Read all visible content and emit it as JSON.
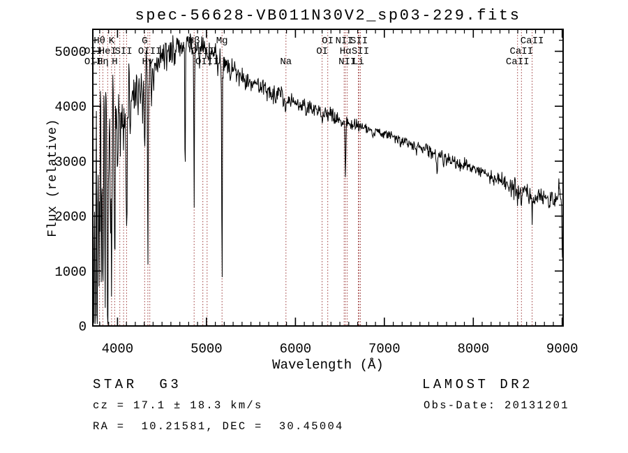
{
  "chart_data": {
    "type": "line",
    "title": "spec-56628-VB011N30V2_sp03-229.fits",
    "xlabel": "Wavelength (Å)",
    "ylabel": "Flux (relative)",
    "xlim": [
      3722,
      9010
    ],
    "ylim": [
      0,
      5400
    ],
    "xticks": [
      4000,
      5000,
      6000,
      7000,
      8000,
      9000
    ],
    "yticks": [
      0,
      1000,
      2000,
      3000,
      4000,
      5000
    ],
    "x_minor_step": 100,
    "y_minor_step": 200,
    "grid": false,
    "legend": null,
    "line_color": "#000000",
    "marker_line_color": "#993333",
    "spectral_lines": [
      {
        "wavelength": 3798,
        "label": "Hθ",
        "row": 1
      },
      {
        "wavelength": 3933,
        "label": "K",
        "row": 1
      },
      {
        "wavelength": 4305,
        "label": "G",
        "row": 1
      },
      {
        "wavelength": 4861,
        "label": "Hβ",
        "row": 1
      },
      {
        "wavelength": 5175,
        "label": "Mg",
        "row": 1
      },
      {
        "wavelength": 6364,
        "label": "OI",
        "row": 1
      },
      {
        "wavelength": 6548,
        "label": "NII",
        "row": 1
      },
      {
        "wavelength": 6716,
        "label": "SII",
        "row": 1
      },
      {
        "wavelength": 8662,
        "label": "CaII",
        "row": 1
      },
      {
        "wavelength": 3727,
        "label": "OII",
        "row": 2
      },
      {
        "wavelength": 3889,
        "label": "HeI",
        "row": 2
      },
      {
        "wavelength": 4068,
        "label": "SII",
        "row": 2
      },
      {
        "wavelength": 4363,
        "label": "OIII",
        "row": 2
      },
      {
        "wavelength": 4959,
        "label": "OIII",
        "row": 2
      },
      {
        "wavelength": 6300,
        "label": "OI",
        "row": 2
      },
      {
        "wavelength": 6563,
        "label": "Hα",
        "row": 2
      },
      {
        "wavelength": 6731,
        "label": "SII",
        "row": 2
      },
      {
        "wavelength": 8542,
        "label": "CaII",
        "row": 2
      },
      {
        "wavelength": 3726,
        "label": "OII",
        "row": 3
      },
      {
        "wavelength": 3835,
        "label": "Hη",
        "row": 3
      },
      {
        "wavelength": 3968,
        "label": "H",
        "row": 3
      },
      {
        "wavelength": 4341,
        "label": "Hγ",
        "row": 3
      },
      {
        "wavelength": 5007,
        "label": "OIII",
        "row": 3
      },
      {
        "wavelength": 5894,
        "label": "Na",
        "row": 3
      },
      {
        "wavelength": 6583,
        "label": "NII",
        "row": 3
      },
      {
        "wavelength": 6707,
        "label": "Li",
        "row": 3
      },
      {
        "wavelength": 8498,
        "label": "CaII",
        "row": 3
      }
    ],
    "extra_marker_wavelengths": [
      4026,
      4102
    ],
    "continuum_points": [
      [
        3722,
        400
      ],
      [
        3740,
        2200
      ],
      [
        3780,
        2700
      ],
      [
        3830,
        2900
      ],
      [
        3880,
        3100
      ],
      [
        3930,
        3300
      ],
      [
        3970,
        3500
      ],
      [
        4000,
        3800
      ],
      [
        4060,
        3900
      ],
      [
        4120,
        4050
      ],
      [
        4180,
        4200
      ],
      [
        4240,
        4350
      ],
      [
        4300,
        4450
      ],
      [
        4360,
        4600
      ],
      [
        4420,
        4750
      ],
      [
        4480,
        4870
      ],
      [
        4550,
        4950
      ],
      [
        4650,
        5040
      ],
      [
        4750,
        5090
      ],
      [
        4850,
        5080
      ],
      [
        4950,
        5040
      ],
      [
        5050,
        4960
      ],
      [
        5150,
        4850
      ],
      [
        5250,
        4750
      ],
      [
        5350,
        4600
      ],
      [
        5450,
        4480
      ],
      [
        5550,
        4400
      ],
      [
        5650,
        4330
      ],
      [
        5750,
        4260
      ],
      [
        5850,
        4200
      ],
      [
        5950,
        4120
      ],
      [
        6050,
        4050
      ],
      [
        6150,
        3980
      ],
      [
        6250,
        3900
      ],
      [
        6350,
        3850
      ],
      [
        6450,
        3790
      ],
      [
        6550,
        3720
      ],
      [
        6650,
        3670
      ],
      [
        6750,
        3630
      ],
      [
        6850,
        3580
      ],
      [
        6950,
        3520
      ],
      [
        7050,
        3470
      ],
      [
        7150,
        3410
      ],
      [
        7250,
        3350
      ],
      [
        7350,
        3280
      ],
      [
        7450,
        3220
      ],
      [
        7550,
        3160
      ],
      [
        7650,
        3090
      ],
      [
        7750,
        3020
      ],
      [
        7850,
        2950
      ],
      [
        7950,
        2890
      ],
      [
        8050,
        2830
      ],
      [
        8150,
        2770
      ],
      [
        8250,
        2700
      ],
      [
        8350,
        2620
      ],
      [
        8450,
        2540
      ],
      [
        8550,
        2460
      ],
      [
        8650,
        2390
      ],
      [
        8750,
        2340
      ],
      [
        8850,
        2310
      ],
      [
        8950,
        2330
      ],
      [
        9010,
        2400
      ]
    ],
    "absorption_features": [
      [
        3727,
        1500,
        5
      ],
      [
        3750,
        2000,
        4
      ],
      [
        3771,
        2400,
        4
      ],
      [
        3798,
        1900,
        5
      ],
      [
        3820,
        2100,
        4
      ],
      [
        3835,
        2000,
        5
      ],
      [
        3860,
        2400,
        4
      ],
      [
        3889,
        2200,
        5
      ],
      [
        3920,
        1500,
        4
      ],
      [
        3933,
        2700,
        5
      ],
      [
        3968,
        2400,
        5
      ],
      [
        4000,
        1300,
        4
      ],
      [
        4026,
        700,
        4
      ],
      [
        4068,
        600,
        4
      ],
      [
        4102,
        2600,
        5
      ],
      [
        4144,
        700,
        4
      ],
      [
        4227,
        800,
        4
      ],
      [
        4280,
        500,
        4
      ],
      [
        4305,
        800,
        6
      ],
      [
        4341,
        3300,
        4
      ],
      [
        4383,
        800,
        4
      ],
      [
        4405,
        500,
        4
      ],
      [
        4760,
        2600,
        3
      ],
      [
        4861,
        2800,
        3
      ],
      [
        4866,
        400,
        6
      ],
      [
        4920,
        250,
        4
      ],
      [
        5175,
        4200,
        3
      ],
      [
        5172,
        330,
        7
      ],
      [
        5270,
        220,
        5
      ],
      [
        5890,
        380,
        6
      ],
      [
        6122,
        150,
        5
      ],
      [
        6300,
        100,
        4
      ],
      [
        6563,
        950,
        4
      ],
      [
        6867,
        180,
        5
      ],
      [
        7180,
        140,
        6
      ],
      [
        7594,
        280,
        7
      ],
      [
        7665,
        160,
        5
      ],
      [
        8227,
        140,
        5
      ],
      [
        8498,
        330,
        4
      ],
      [
        8542,
        360,
        4
      ],
      [
        8662,
        320,
        4
      ],
      [
        8965,
        -300,
        4
      ],
      [
        9002,
        1250,
        5
      ]
    ],
    "noise_profile": [
      [
        3722,
        3960,
        800
      ],
      [
        3960,
        4150,
        350
      ],
      [
        4150,
        4350,
        250
      ],
      [
        4350,
        5200,
        130
      ],
      [
        5200,
        5900,
        100
      ],
      [
        5900,
        6700,
        70
      ],
      [
        6700,
        7500,
        55
      ],
      [
        7500,
        8400,
        60
      ],
      [
        8400,
        9010,
        85
      ]
    ],
    "noise_seed": 7,
    "sample_step": 5
  },
  "annotations": {
    "class_label": "STAR  G3",
    "survey": "LAMOST DR2",
    "cz": "cz = 17.1 ± 18.3 km/s",
    "obs_date": "Obs-Date: 20131201",
    "coordinates": "RA =  10.21581, DEC =  30.45004"
  }
}
